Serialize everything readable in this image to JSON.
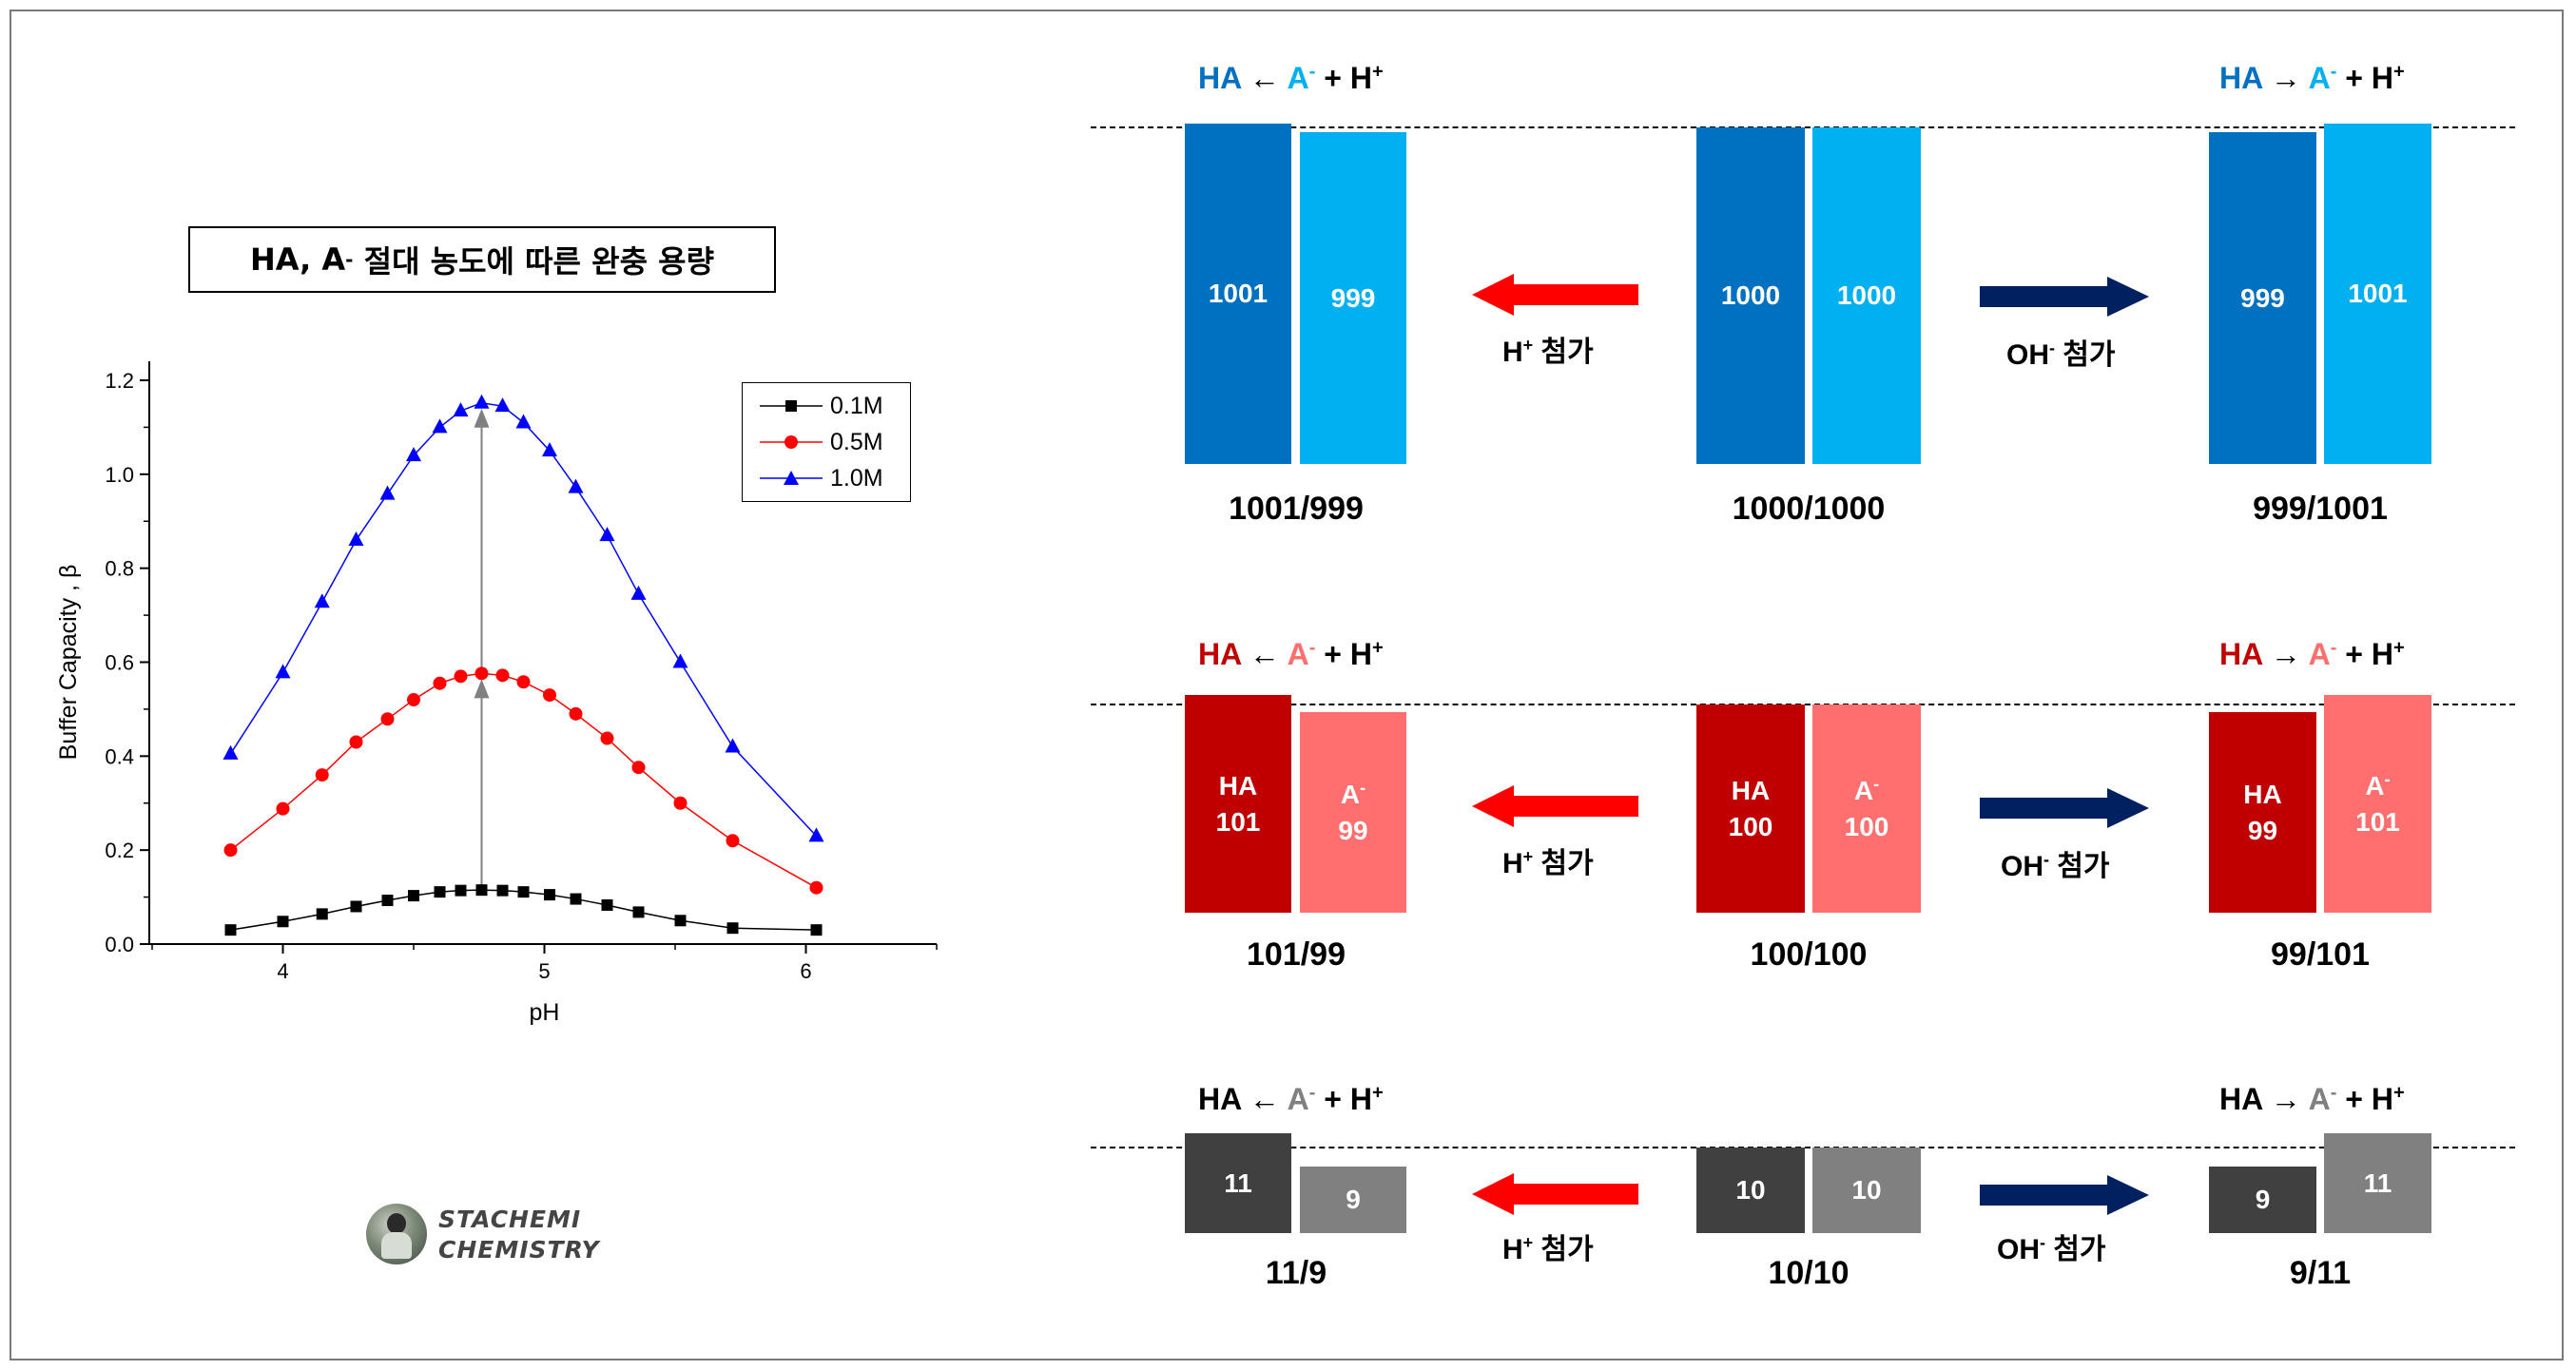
{
  "chart_data": {
    "type": "line",
    "title": "HA, A⁻ 절대 농도에 따른 완충 용량",
    "xlabel": "pH",
    "ylabel": "Buffer Capacity , β",
    "xlim": [
      3.5,
      6.5
    ],
    "ylim": [
      0,
      1.2
    ],
    "xticks": [
      4,
      5,
      6
    ],
    "yticks": [
      0.0,
      0.2,
      0.4,
      0.6,
      0.8,
      1.0,
      1.2
    ],
    "x": [
      3.8,
      4.0,
      4.15,
      4.28,
      4.4,
      4.5,
      4.6,
      4.68,
      4.76,
      4.84,
      4.92,
      5.02,
      5.12,
      5.24,
      5.36,
      5.52,
      5.72,
      6.04
    ],
    "series": [
      {
        "name": "0.1M",
        "color": "#000000",
        "marker": "square",
        "values": [
          0.03,
          0.048,
          0.064,
          0.08,
          0.093,
          0.103,
          0.111,
          0.114,
          0.115,
          0.114,
          0.111,
          0.105,
          0.096,
          0.083,
          0.068,
          0.05,
          0.034,
          0.03
        ]
      },
      {
        "name": "0.5M",
        "color": "#ff0000",
        "marker": "circle",
        "values": [
          0.2,
          0.288,
          0.36,
          0.43,
          0.479,
          0.52,
          0.555,
          0.57,
          0.576,
          0.572,
          0.558,
          0.53,
          0.49,
          0.438,
          0.376,
          0.3,
          0.22,
          0.12
        ]
      },
      {
        "name": "1.0M",
        "color": "#0000ff",
        "marker": "triangle",
        "values": [
          0.405,
          0.578,
          0.728,
          0.86,
          0.958,
          1.04,
          1.1,
          1.135,
          1.152,
          1.145,
          1.11,
          1.05,
          0.972,
          0.87,
          0.745,
          0.6,
          0.42,
          0.23
        ]
      }
    ],
    "annotations": [
      {
        "type": "arrow",
        "x": 4.76,
        "from": 0.115,
        "to": 0.576
      },
      {
        "type": "arrow",
        "x": 4.76,
        "from": 0.576,
        "to": 1.152
      }
    ],
    "legend": "top-right"
  },
  "chart_title": {
    "main": "HA, A",
    "sup": "-",
    "rest": " 절대 농도에 따른 완충 용량"
  },
  "logo": {
    "line1": "STACHEMI",
    "line2": "CHEMISTRY"
  },
  "colors": {
    "blue_dark": "#0070c0",
    "blue_light": "#00b0f0",
    "red_dark": "#c00000",
    "red_light": "#ff6f6f",
    "gray_dark": "#404040",
    "gray_light": "#808080",
    "arrow_red": "#ff0000",
    "arrow_navy": "#002060"
  },
  "equations": {
    "left": {
      "ha": "HA",
      "arrow": " ← ",
      "a": "A",
      "a_sup": "-",
      "plus": " + H",
      "h_sup": "+"
    },
    "right": {
      "ha": "HA",
      "arrow": " → ",
      "a": "A",
      "a_sup": "-",
      "plus": " + H",
      "h_sup": "+"
    }
  },
  "arrows": {
    "h_label": "H",
    "h_sup": "+",
    "h_rest": " 첨가",
    "oh_label": "OH",
    "oh_sup": "-",
    "oh_rest": " 첨가"
  },
  "rows": [
    {
      "theme": "blue",
      "left": {
        "ha": "1001",
        "a": "999",
        "ratio": "1001/999"
      },
      "center": {
        "ha": "1000",
        "a": "1000",
        "ratio": "1000/1000"
      },
      "right": {
        "ha": "999",
        "a": "1001",
        "ratio": "999/1001"
      }
    },
    {
      "theme": "red",
      "ha_name": "HA",
      "a_name": "A",
      "a_sup": "-",
      "left": {
        "ha": "101",
        "a": "99",
        "ratio": "101/99"
      },
      "center": {
        "ha": "100",
        "a": "100",
        "ratio": "100/100"
      },
      "right": {
        "ha": "99",
        "a": "101",
        "ratio": "99/101"
      }
    },
    {
      "theme": "gray",
      "left": {
        "ha": "11",
        "a": "9",
        "ratio": "11/9"
      },
      "center": {
        "ha": "10",
        "a": "10",
        "ratio": "10/10"
      },
      "right": {
        "ha": "9",
        "a": "11",
        "ratio": "9/11"
      }
    }
  ]
}
